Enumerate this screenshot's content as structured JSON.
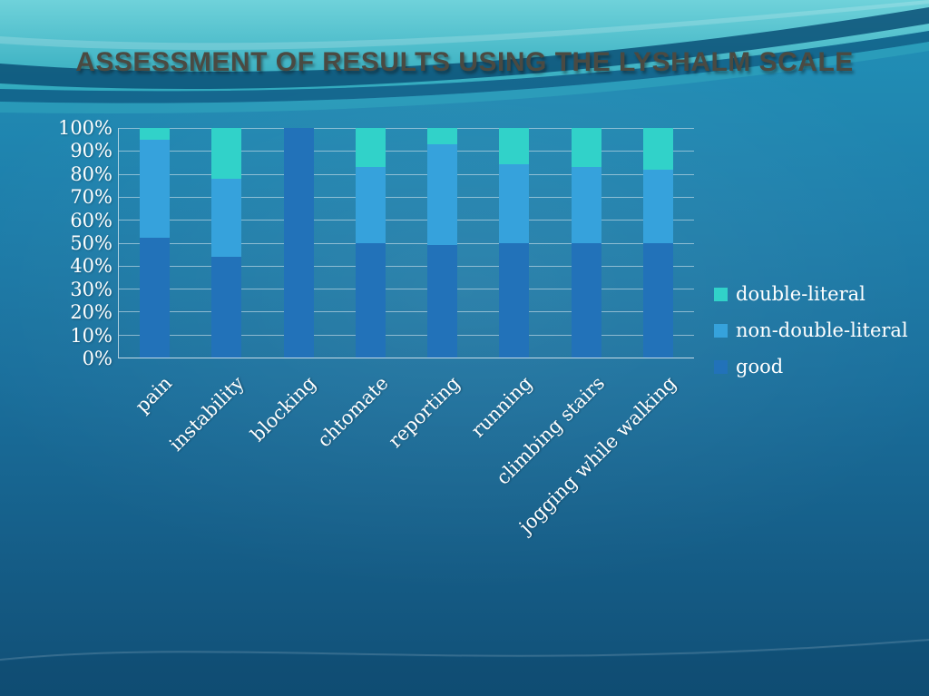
{
  "slide": {
    "title": "ASSESSMENT OF RESULTS USING THE LYSHALM SCALE"
  },
  "chart_data": {
    "type": "bar",
    "stacked": "percent",
    "title": "ASSESSMENT OF RESULTS USING THE LYSHALM SCALE",
    "categories": [
      "pain",
      "instability",
      "blocking",
      "chtomate",
      "reporting",
      "running",
      "climbing stairs",
      "jogging while walking"
    ],
    "series": [
      {
        "name": "good",
        "color": "#2272B9",
        "values": [
          52,
          44,
          100,
          50,
          49,
          50,
          50,
          50
        ]
      },
      {
        "name": "non-double-literal",
        "color": "#36A2DC",
        "values": [
          43,
          34,
          0,
          33,
          44,
          34,
          33,
          32
        ]
      },
      {
        "name": "double-literal",
        "color": "#31D2C9",
        "values": [
          5,
          22,
          0,
          17,
          7,
          16,
          17,
          18
        ]
      }
    ],
    "legend": [
      {
        "label": "double-literal",
        "color": "#31D2C9"
      },
      {
        "label": "non-double-literal",
        "color": "#36A2DC"
      },
      {
        "label": "good",
        "color": "#2272B9"
      }
    ],
    "legend_position": "right",
    "grid": true,
    "ylim": [
      0,
      100
    ],
    "y_ticks": [
      "100%",
      "90%",
      "80%",
      "70%",
      "60%",
      "50%",
      "40%",
      "30%",
      "20%",
      "10%",
      "0%"
    ],
    "xlabel": "",
    "ylabel": ""
  }
}
